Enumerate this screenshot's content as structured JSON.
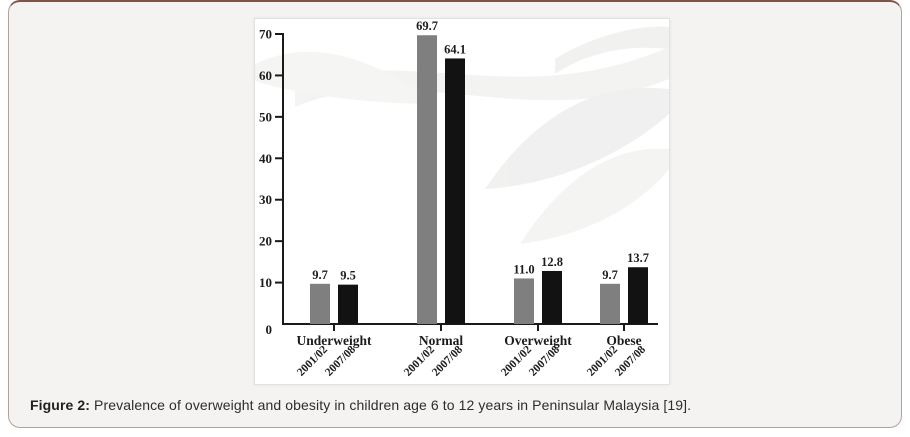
{
  "figure": {
    "caption_label": "Figure 2:",
    "caption_text": "Prevalence of overweight and obesity in children age 6 to 12 years in Peninsular Malaysia [19]."
  },
  "chart_data": {
    "type": "bar",
    "title": "",
    "xlabel": "",
    "ylabel": "",
    "categories": [
      "Underweight",
      "Normal",
      "Overweight",
      "Obese"
    ],
    "series": [
      {
        "name": "2001/02",
        "color": "#7f7f7f",
        "values": [
          9.7,
          69.7,
          11.0,
          9.7
        ]
      },
      {
        "name": "2007/08",
        "color": "#121212",
        "values": [
          9.5,
          64.1,
          12.8,
          13.7
        ]
      }
    ],
    "ylim": [
      0,
      70
    ],
    "yticks": [
      0,
      10,
      20,
      30,
      40,
      50,
      60,
      70
    ],
    "grid": false,
    "value_labels": true,
    "legend_position": "per-bar rotated labels below x-axis",
    "axis_color": "#1a1a1a"
  },
  "colors": {
    "card_background": "#f4f3f1",
    "card_border": "#b3a19a",
    "card_border_top": "#7e5348",
    "panel_background": "#ffffff",
    "bar_2001_02": "#7f7f7f",
    "bar_2007_08": "#121212"
  }
}
